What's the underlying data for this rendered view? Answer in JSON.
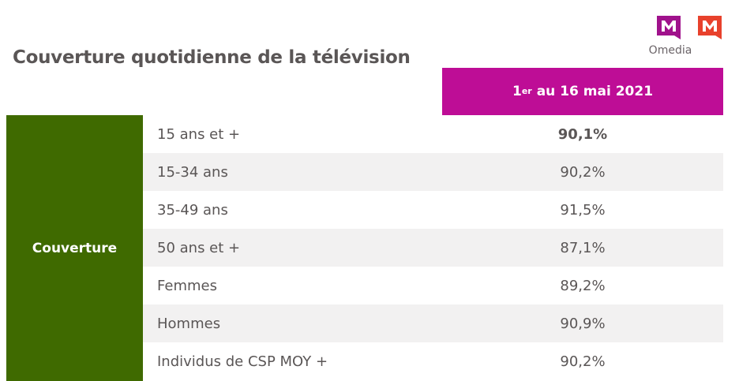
{
  "title": "Couverture quotidienne de la télévision",
  "logo": {
    "brand": "Omedia",
    "mark": "M",
    "colors": [
      "#a0128c",
      "#e8412c"
    ]
  },
  "header": {
    "sup": "er",
    "prefix": "1",
    "text": "au 16 mai 2021",
    "color": "#be0d96"
  },
  "section": {
    "label": "Couverture",
    "color": "#3f6a00"
  },
  "rows": [
    {
      "label": "15 ans et +",
      "value": "90,1%"
    },
    {
      "label": "15-34 ans",
      "value": "90,2%"
    },
    {
      "label": "35-49 ans",
      "value": "91,5%"
    },
    {
      "label": "50 ans et +",
      "value": "87,1%"
    },
    {
      "label": "Femmes",
      "value": "89,2%"
    },
    {
      "label": "Hommes",
      "value": "90,9%"
    },
    {
      "label": "Individus de CSP MOY +",
      "value": "90,2%"
    }
  ]
}
